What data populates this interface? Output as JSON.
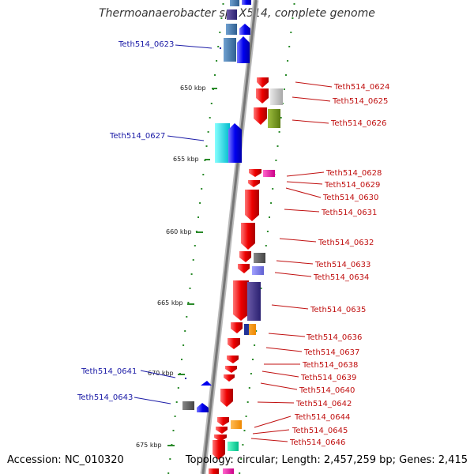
{
  "title": "Thermoanaerobacter sp. X514, complete genome",
  "footer": {
    "accession": "Accession: NC_010320",
    "summary": "Topology: circular; Length: 2,457,259 bp; Genes: 2,415"
  },
  "scale_labels": [
    "650 kbp",
    "655 kbp",
    "660 kbp",
    "665 kbp",
    "670 kbp",
    "675 kbp"
  ],
  "gene_labels_left": [
    "Teth514_0623",
    "Teth514_0627",
    "Teth514_0641",
    "Teth514_0643"
  ],
  "gene_labels_right": [
    "Teth514_0624",
    "Teth514_0625",
    "Teth514_0626",
    "Teth514_0628",
    "Teth514_0629",
    "Teth514_0630",
    "Teth514_0631",
    "Teth514_0632",
    "Teth514_0633",
    "Teth514_0634",
    "Teth514_0635",
    "Teth514_0636",
    "Teth514_0637",
    "Teth514_0638",
    "Teth514_0639",
    "Teth514_0640",
    "Teth514_0642",
    "Teth514_0644",
    "Teth514_0645",
    "Teth514_0646"
  ],
  "colors": {
    "backbone": "#888888",
    "forward_strand": "#1111ee",
    "reverse_strand": "#ee1111",
    "label_forward": "#1a1aa6",
    "label_reverse": "#c01010",
    "dotted_track": "#2a8a2a"
  }
}
